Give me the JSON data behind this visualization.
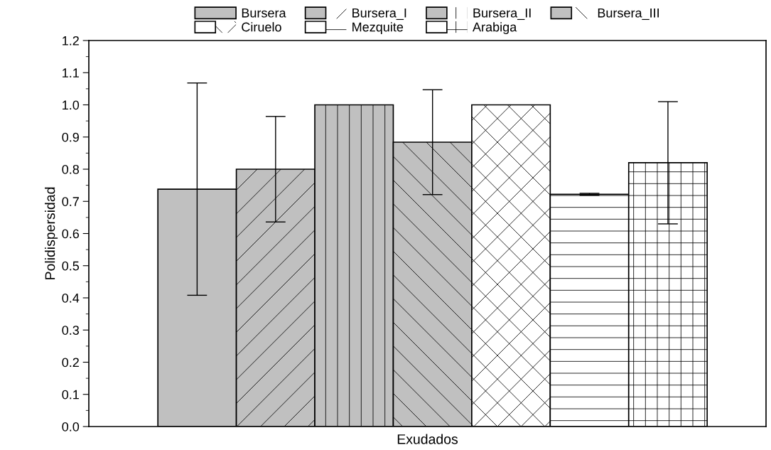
{
  "chart_data": {
    "type": "bar",
    "xlabel": "Exudados",
    "ylabel": "Polidispersidad",
    "categories": [
      null
    ],
    "series": [
      {
        "name": "Bursera",
        "color": "#c0c0c0",
        "values": [
          0.738
        ],
        "errors": [
          0.33
        ]
      },
      {
        "name": "Bursera_I",
        "color": "#c0c0c0",
        "values": [
          0.8
        ],
        "errors": [
          0.164
        ]
      },
      {
        "name": "Bursera_II",
        "color": "#c0c0c0",
        "values": [
          1.0
        ],
        "errors": [
          null
        ]
      },
      {
        "name": "Bursera_III",
        "color": "#c0c0c0",
        "values": [
          0.884
        ],
        "errors": [
          0.163
        ]
      },
      {
        "name": "Ciruelo",
        "color": "#ffffff",
        "values": [
          1.0
        ],
        "errors": [
          null
        ]
      },
      {
        "name": "Mezquite",
        "color": "#ffffff",
        "values": [
          0.722
        ],
        "errors": [
          0.003
        ]
      },
      {
        "name": "Arabiga",
        "color": "#ffffff",
        "values": [
          0.82
        ],
        "errors": [
          0.19
        ]
      }
    ],
    "ylim": [
      0.0,
      1.2
    ],
    "yticks": [
      {
        "value": 0.0,
        "label": "0.0"
      },
      0.1,
      0.2,
      0.3,
      0.4,
      0.5,
      0.6,
      0.7,
      0.8,
      0.9,
      {
        "value": 1.0,
        "label": "1.0"
      },
      1.1,
      1.2
    ],
    "grid": false,
    "legend": "top"
  }
}
